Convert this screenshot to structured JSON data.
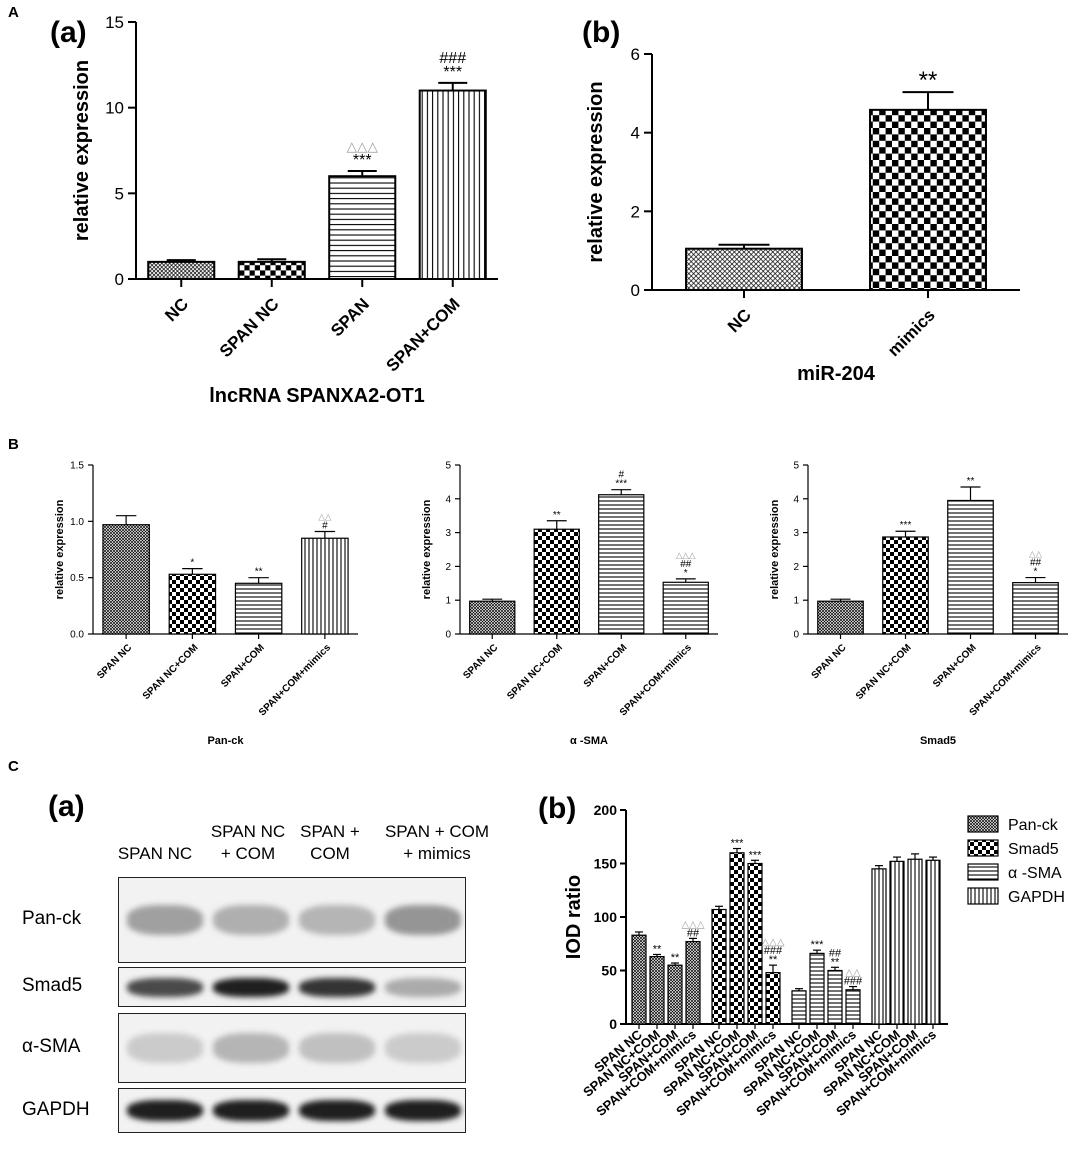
{
  "figure": {
    "letters": {
      "A": "A",
      "B": "B",
      "C": "C"
    }
  },
  "colors": {
    "axis": "#000000",
    "bar_fill": "#ffffff",
    "bar_stroke": "#000000",
    "grey_symbol": "#9a9a9a"
  },
  "chart_data": [
    {
      "id": "A_a",
      "type": "bar",
      "panel_label": "(a)",
      "xlabel": "lncRNA SPANXA2-OT1",
      "ylabel": "relative expression",
      "ylim": [
        0,
        15
      ],
      "yticks": [
        "0",
        "5",
        "10",
        "15"
      ],
      "categories": [
        "NC",
        "SPAN NC",
        "SPAN",
        "SPAN+COM"
      ],
      "values": [
        1.0,
        1.0,
        6.0,
        11.0
      ],
      "errors": [
        0.1,
        0.15,
        0.3,
        0.45
      ],
      "patterns": [
        "dots",
        "checker",
        "hlines",
        "vlines"
      ],
      "annotations": [
        {
          "index": 2,
          "lines": [
            {
              "text": "△△△",
              "grey": true
            },
            {
              "text": "***",
              "grey": false
            }
          ]
        },
        {
          "index": 3,
          "lines": [
            {
              "text": "###",
              "grey": false
            },
            {
              "text": "***",
              "grey": false
            }
          ]
        }
      ]
    },
    {
      "id": "A_b",
      "type": "bar",
      "panel_label": "(b)",
      "xlabel": "miR-204",
      "ylabel": "relative expression",
      "ylim": [
        0,
        6
      ],
      "yticks": [
        "0",
        "2",
        "4",
        "6"
      ],
      "categories": [
        "NC",
        "mimics"
      ],
      "values": [
        1.05,
        4.58
      ],
      "errors": [
        0.1,
        0.45
      ],
      "patterns": [
        "dots",
        "checker"
      ],
      "annotations": [
        {
          "index": 1,
          "lines": [
            {
              "text": "**",
              "grey": false
            }
          ]
        }
      ]
    },
    {
      "id": "B_1",
      "type": "bar",
      "xlabel": "Pan-ck",
      "ylabel": "relative expression",
      "ylim": [
        0,
        1.5
      ],
      "yticks": [
        "0.0",
        "0.5",
        "1.0",
        "1.5"
      ],
      "categories": [
        "SPAN NC",
        "SPAN NC+COM",
        "SPAN+COM",
        "SPAN+COM+mimics"
      ],
      "values": [
        0.97,
        0.53,
        0.45,
        0.85
      ],
      "errors": [
        0.08,
        0.05,
        0.05,
        0.06
      ],
      "patterns": [
        "dots",
        "checker",
        "hlines",
        "vlines"
      ],
      "annotations": [
        {
          "index": 1,
          "lines": [
            {
              "text": "*",
              "grey": false
            }
          ]
        },
        {
          "index": 2,
          "lines": [
            {
              "text": "**",
              "grey": false
            }
          ]
        },
        {
          "index": 3,
          "lines": [
            {
              "text": "△△",
              "grey": true
            },
            {
              "text": "#",
              "grey": false
            }
          ]
        }
      ]
    },
    {
      "id": "B_2",
      "type": "bar",
      "xlabel": "α -SMA",
      "ylabel": "relative expression",
      "ylim": [
        0,
        5
      ],
      "yticks": [
        "0",
        "1",
        "2",
        "3",
        "4",
        "5"
      ],
      "categories": [
        "SPAN NC",
        "SPAN NC+COM",
        "SPAN+COM",
        "SPAN+COM+mimics"
      ],
      "values": [
        0.97,
        3.1,
        4.12,
        1.53
      ],
      "errors": [
        0.06,
        0.25,
        0.15,
        0.1
      ],
      "patterns": [
        "dots",
        "checker",
        "hlines",
        "hlines"
      ],
      "annotations": [
        {
          "index": 1,
          "lines": [
            {
              "text": "**",
              "grey": false
            }
          ]
        },
        {
          "index": 2,
          "lines": [
            {
              "text": "#",
              "grey": false
            },
            {
              "text": "***",
              "grey": false
            }
          ]
        },
        {
          "index": 3,
          "lines": [
            {
              "text": "△△△",
              "grey": true
            },
            {
              "text": "##",
              "grey": false
            },
            {
              "text": "*",
              "grey": false
            }
          ]
        }
      ]
    },
    {
      "id": "B_3",
      "type": "bar",
      "xlabel": "Smad5",
      "ylabel": "relative expression",
      "ylim": [
        0,
        5
      ],
      "yticks": [
        "0",
        "1",
        "2",
        "3",
        "4",
        "5"
      ],
      "categories": [
        "SPAN NC",
        "SPAN NC+COM",
        "SPAN+COM",
        "SPAN+COM+mimics"
      ],
      "values": [
        0.97,
        2.87,
        3.95,
        1.52
      ],
      "errors": [
        0.06,
        0.17,
        0.4,
        0.15
      ],
      "patterns": [
        "dots",
        "checker",
        "hlines",
        "hlines"
      ],
      "annotations": [
        {
          "index": 1,
          "lines": [
            {
              "text": "***",
              "grey": false
            }
          ]
        },
        {
          "index": 2,
          "lines": [
            {
              "text": "**",
              "grey": false
            }
          ]
        },
        {
          "index": 3,
          "lines": [
            {
              "text": "△△",
              "grey": true
            },
            {
              "text": "##",
              "grey": false
            },
            {
              "text": "*",
              "grey": false
            }
          ]
        }
      ]
    },
    {
      "id": "C_b",
      "type": "bar",
      "panel_label": "(b)",
      "ylabel": "IOD ratio",
      "ylim": [
        0,
        200
      ],
      "yticks": [
        "0",
        "50",
        "100",
        "150",
        "200"
      ],
      "categories": [
        "SPAN NC",
        "SPAN NC+COM",
        "SPAN+COM",
        "SPAN+COM+mimics"
      ],
      "series": [
        {
          "name": "Pan-ck",
          "pattern": "dots",
          "values": [
            83,
            63,
            55,
            77
          ],
          "errors": [
            3,
            2,
            2,
            3
          ]
        },
        {
          "name": "Smad5",
          "pattern": "checker",
          "values": [
            107,
            160,
            150,
            48
          ],
          "errors": [
            3,
            4,
            3,
            7
          ]
        },
        {
          "name": "α -SMA",
          "pattern": "hlines",
          "values": [
            31,
            66,
            50,
            32
          ],
          "errors": [
            2,
            3,
            3,
            3
          ]
        },
        {
          "name": "GAPDH",
          "pattern": "vlines",
          "values": [
            145,
            152,
            154,
            153
          ],
          "errors": [
            3,
            4,
            5,
            3
          ]
        }
      ],
      "annotations": [
        {
          "series": 0,
          "index": 1,
          "lines": [
            {
              "text": "**",
              "grey": false
            }
          ]
        },
        {
          "series": 0,
          "index": 2,
          "lines": [
            {
              "text": "**",
              "grey": false
            }
          ]
        },
        {
          "series": 0,
          "index": 3,
          "lines": [
            {
              "text": "△△△",
              "grey": true
            },
            {
              "text": "##",
              "grey": false
            }
          ]
        },
        {
          "series": 1,
          "index": 1,
          "lines": [
            {
              "text": "***",
              "grey": false
            }
          ]
        },
        {
          "series": 1,
          "index": 2,
          "lines": [
            {
              "text": "***",
              "grey": false
            }
          ]
        },
        {
          "series": 1,
          "index": 3,
          "lines": [
            {
              "text": "△△△",
              "grey": true
            },
            {
              "text": "###",
              "grey": false
            },
            {
              "text": "**",
              "grey": false
            }
          ]
        },
        {
          "series": 2,
          "index": 1,
          "lines": [
            {
              "text": "***",
              "grey": false
            }
          ]
        },
        {
          "series": 2,
          "index": 2,
          "lines": [
            {
              "text": "##",
              "grey": false
            },
            {
              "text": "**",
              "grey": false
            }
          ]
        },
        {
          "series": 2,
          "index": 3,
          "lines": [
            {
              "text": "△△",
              "grey": true
            },
            {
              "text": "###",
              "grey": false
            }
          ]
        }
      ]
    }
  ],
  "western_blot": {
    "panel_label": "(a)",
    "lanes": [
      [
        "SPAN NC"
      ],
      [
        "SPAN NC",
        "+ COM"
      ],
      [
        "SPAN +",
        "COM"
      ],
      [
        "SPAN + COM",
        "+ mimics"
      ]
    ],
    "rows": [
      {
        "label": "Pan-ck",
        "intensity": [
          0.35,
          0.28,
          0.25,
          0.4
        ]
      },
      {
        "label": "Smad5",
        "intensity": [
          0.75,
          0.95,
          0.85,
          0.3
        ]
      },
      {
        "label": "α-SMA",
        "intensity": [
          0.15,
          0.25,
          0.2,
          0.15
        ]
      },
      {
        "label": "GAPDH",
        "intensity": [
          0.95,
          0.95,
          0.95,
          0.95
        ]
      }
    ]
  }
}
